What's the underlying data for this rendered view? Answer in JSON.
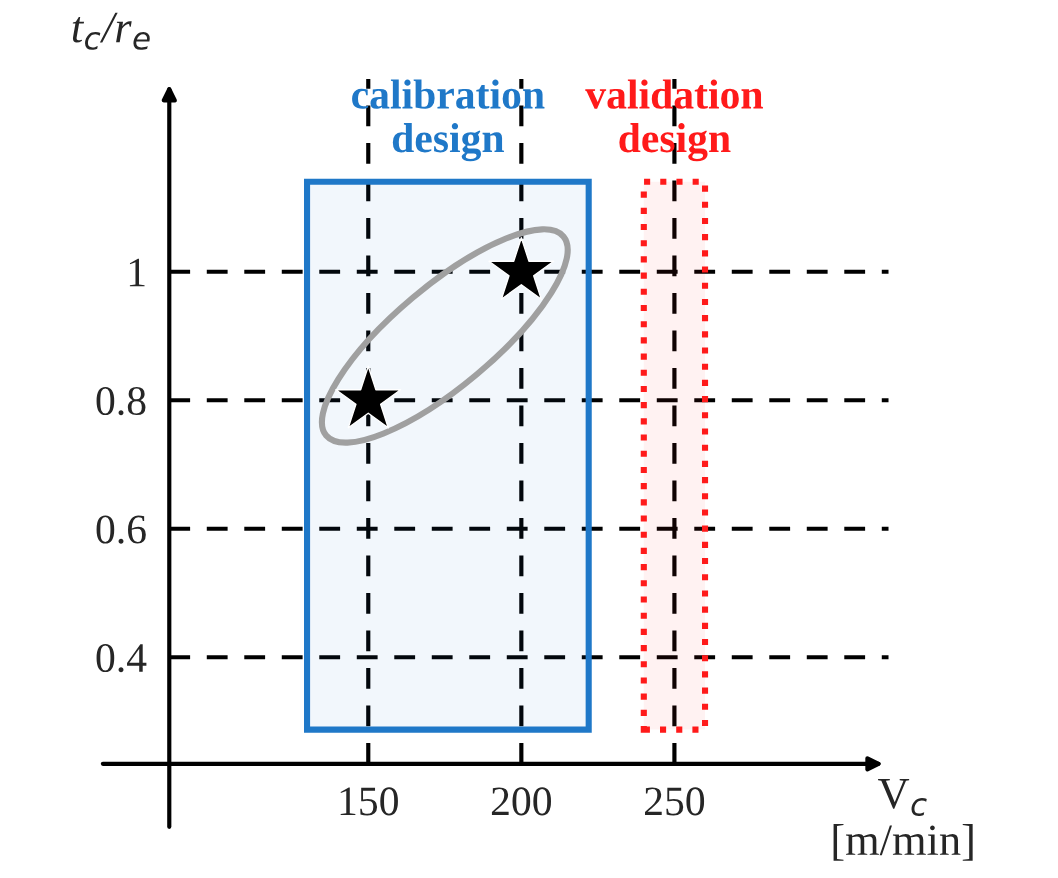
{
  "chart_data": {
    "type": "scatter",
    "xlabel": "V$_{c}$\n[m/min]",
    "ylabel": "t$_{c}$/r$_{e}$",
    "x": [
      150,
      200
    ],
    "values": [
      0.8,
      1
    ],
    "color": "#000000",
    "marker": "star",
    "xlim": [
      85,
      320
    ],
    "ylim": [
      0.234,
      1.3
    ],
    "xticks": [
      150,
      200,
      250
    ],
    "yticks": [
      0.4,
      0.6,
      0.8,
      1
    ],
    "grid": true,
    "line_style": "dashed",
    "bands": [
      {
        "axis": "x",
        "from": 130,
        "to": 222,
        "label": "calibration design",
        "color": "#1f78c8"
      },
      {
        "axis": "x",
        "from": 240,
        "to": 260,
        "label": "validation design",
        "color": "#ff1a1a"
      }
    ]
  }
}
